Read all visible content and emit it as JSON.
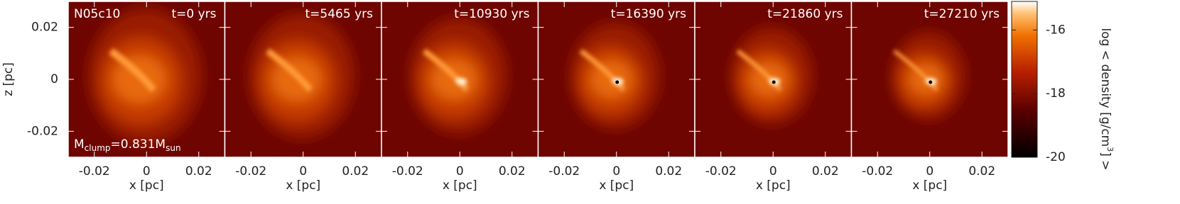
{
  "chart_data": {
    "type": "density-maps",
    "label": "N05c10",
    "mass_label": [
      "M",
      "clump",
      "=0.831M",
      "sun"
    ],
    "panels": [
      {
        "time": "t=0 yrs"
      },
      {
        "time": "t=5465 yrs"
      },
      {
        "time": "t=10930 yrs"
      },
      {
        "time": "t=16390 yrs"
      },
      {
        "time": "t=21860 yrs"
      },
      {
        "time": "t=27210 yrs"
      }
    ],
    "xlabel": "x [pc]",
    "ylabel": "z [pc]",
    "xlim": [
      -0.03,
      0.03
    ],
    "ylim": [
      -0.03,
      0.03
    ],
    "xticks": [
      -0.02,
      0,
      0.02
    ],
    "yticks": [
      -0.02,
      0,
      0.02
    ],
    "colorbar": {
      "label": [
        "log < density [g/cm",
        "3",
        "] >"
      ],
      "lim": [
        -20,
        -15.1
      ],
      "ticks": [
        -16,
        -18,
        -20
      ]
    }
  }
}
